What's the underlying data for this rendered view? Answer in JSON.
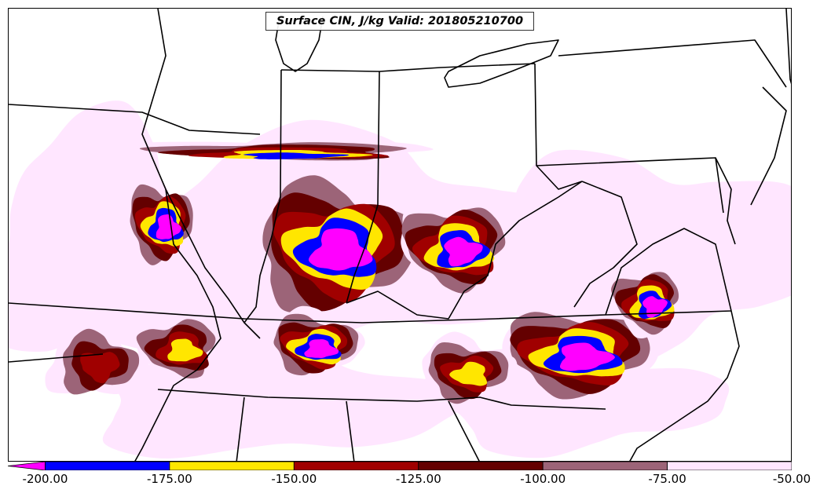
{
  "title": "Surface CIN, J/kg Valid: 201805210700",
  "colors": {
    "lt_-200": "#ff00ff",
    "-200_-175": "#0000ff",
    "-175_-150": "#ffe600",
    "-150_-125": "#a00000",
    "-125_-100": "#640000",
    "-100_-75": "#9c6478",
    "-75_-50": "#ffe6ff",
    "background": "#ffffff",
    "borders": "#000000"
  },
  "colorbar": {
    "ticks": [
      "-200.00",
      "-175.00",
      "-150.00",
      "-125.00",
      "-100.00",
      "-75.00",
      "-50.00"
    ]
  }
}
